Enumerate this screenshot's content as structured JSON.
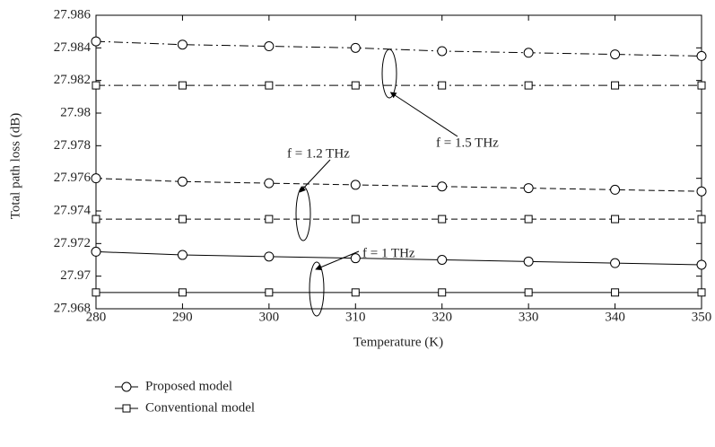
{
  "chart_data": {
    "type": "line",
    "xlabel": "Temperature (K)",
    "ylabel": "Total path loss (dB)",
    "x": [
      280,
      290,
      300,
      310,
      320,
      330,
      340,
      350
    ],
    "xlim": [
      280,
      350
    ],
    "xticks": [
      280,
      290,
      300,
      310,
      320,
      330,
      340,
      350
    ],
    "ylim": [
      27.968,
      27.986
    ],
    "yticks": [
      27.968,
      27.97,
      27.972,
      27.974,
      27.976,
      27.978,
      27.98,
      27.982,
      27.984,
      27.986
    ],
    "color": "#000000",
    "series": [
      {
        "marker": "circle",
        "linestyle": "dashdot",
        "values": [
          27.9844,
          27.9842,
          27.9841,
          27.984,
          27.9838,
          27.9837,
          27.9836,
          27.9835
        ]
      },
      {
        "marker": "square",
        "linestyle": "dashdot",
        "values": [
          27.9817,
          27.9817,
          27.9817,
          27.9817,
          27.9817,
          27.9817,
          27.9817,
          27.9817
        ]
      },
      {
        "marker": "circle",
        "linestyle": "dashed",
        "values": [
          27.976,
          27.9758,
          27.9757,
          27.9756,
          27.9755,
          27.9754,
          27.9753,
          27.9752
        ]
      },
      {
        "marker": "square",
        "linestyle": "dashed",
        "values": [
          27.9735,
          27.9735,
          27.9735,
          27.9735,
          27.9735,
          27.9735,
          27.9735,
          27.9735
        ]
      },
      {
        "marker": "circle",
        "linestyle": "solid",
        "values": [
          27.9715,
          27.9713,
          27.9712,
          27.9711,
          27.971,
          27.9709,
          27.9708,
          27.9707
        ]
      },
      {
        "marker": "square",
        "linestyle": "solid",
        "values": [
          27.969,
          27.969,
          27.969,
          27.969,
          27.969,
          27.969,
          27.969,
          27.969
        ]
      }
    ],
    "legend": [
      {
        "name": "Proposed model",
        "marker": "circle"
      },
      {
        "name": "Conventional model",
        "marker": "square"
      }
    ],
    "annotations": [
      "f = 1.5 THz",
      "f = 1.2 THz",
      "f = 1 THz"
    ]
  }
}
